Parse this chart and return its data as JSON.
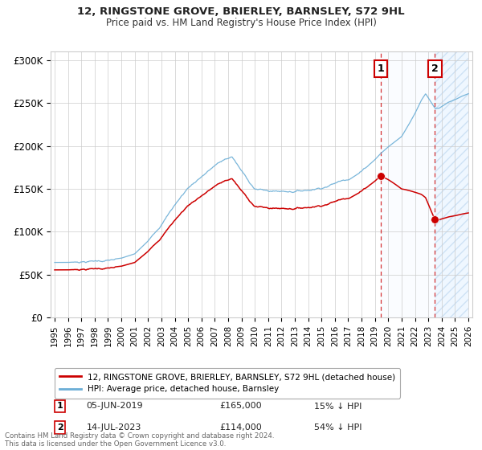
{
  "title": "12, RINGSTONE GROVE, BRIERLEY, BARNSLEY, S72 9HL",
  "subtitle": "Price paid vs. HM Land Registry's House Price Index (HPI)",
  "legend_line1": "12, RINGSTONE GROVE, BRIERLEY, BARNSLEY, S72 9HL (detached house)",
  "legend_line2": "HPI: Average price, detached house, Barnsley",
  "transaction1_date": "05-JUN-2019",
  "transaction1_price": 165000,
  "transaction1_label": "15% ↓ HPI",
  "transaction2_date": "14-JUL-2023",
  "transaction2_price": 114000,
  "transaction2_label": "54% ↓ HPI",
  "footer": "Contains HM Land Registry data © Crown copyright and database right 2024.\nThis data is licensed under the Open Government Licence v3.0.",
  "hpi_color": "#6baed6",
  "price_color": "#cc0000",
  "dashed_color": "#cc0000",
  "background_color": "#ffffff",
  "grid_color": "#cccccc",
  "shade_color": "#ddeeff",
  "ylim": [
    0,
    310000
  ],
  "yticks": [
    0,
    50000,
    100000,
    150000,
    200000,
    250000,
    300000
  ],
  "ytick_labels": [
    "£0",
    "£50K",
    "£100K",
    "£150K",
    "£200K",
    "£250K",
    "£300K"
  ],
  "xmin": 1995,
  "xmax": 2026
}
